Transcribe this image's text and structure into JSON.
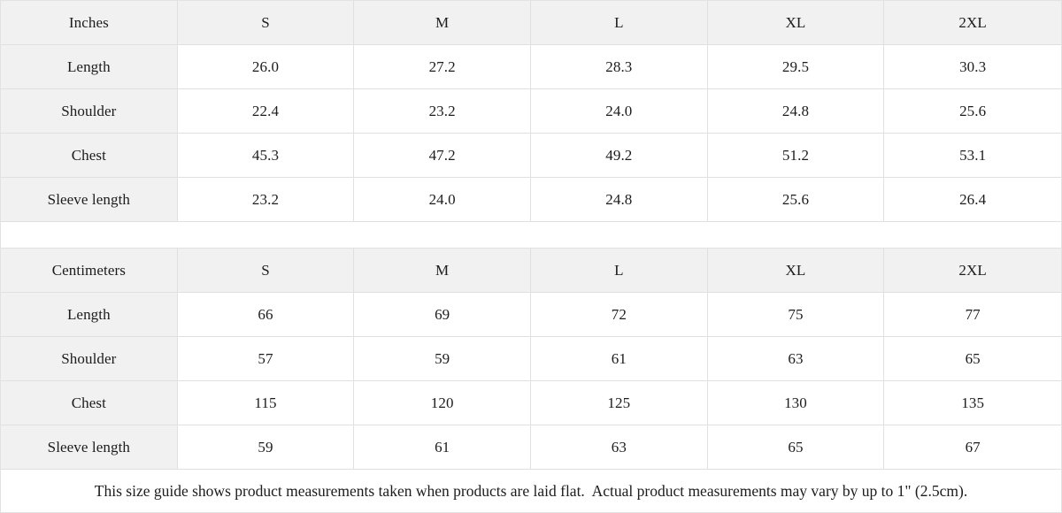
{
  "colors": {
    "cell_background": "#f1f1f1",
    "border": "#e0e0e0",
    "text": "#1c1c1c",
    "page_background": "#ffffff"
  },
  "inches_table": {
    "header": [
      "Inches",
      "S",
      "M",
      "L",
      "XL",
      "2XL"
    ],
    "rows": [
      {
        "label": "Length",
        "values": [
          "26.0",
          "27.2",
          "28.3",
          "29.5",
          "30.3"
        ]
      },
      {
        "label": "Shoulder",
        "values": [
          "22.4",
          "23.2",
          "24.0",
          "24.8",
          "25.6"
        ]
      },
      {
        "label": "Chest",
        "values": [
          "45.3",
          "47.2",
          "49.2",
          "51.2",
          "53.1"
        ]
      },
      {
        "label": "Sleeve length",
        "values": [
          "23.2",
          "24.0",
          "24.8",
          "25.6",
          "26.4"
        ]
      }
    ]
  },
  "centimeters_table": {
    "header": [
      "Centimeters",
      "S",
      "M",
      "L",
      "XL",
      "2XL"
    ],
    "rows": [
      {
        "label": "Length",
        "values": [
          "66",
          "69",
          "72",
          "75",
          "77"
        ]
      },
      {
        "label": "Shoulder",
        "values": [
          "57",
          "59",
          "61",
          "63",
          "65"
        ]
      },
      {
        "label": "Chest",
        "values": [
          "115",
          "120",
          "125",
          "130",
          "135"
        ]
      },
      {
        "label": "Sleeve length",
        "values": [
          "59",
          "61",
          "63",
          "65",
          "67"
        ]
      }
    ]
  },
  "footer": {
    "note": "This size guide shows product measurements taken when products are laid flat.  Actual product measurements may vary by up to 1\" (2.5cm)."
  }
}
